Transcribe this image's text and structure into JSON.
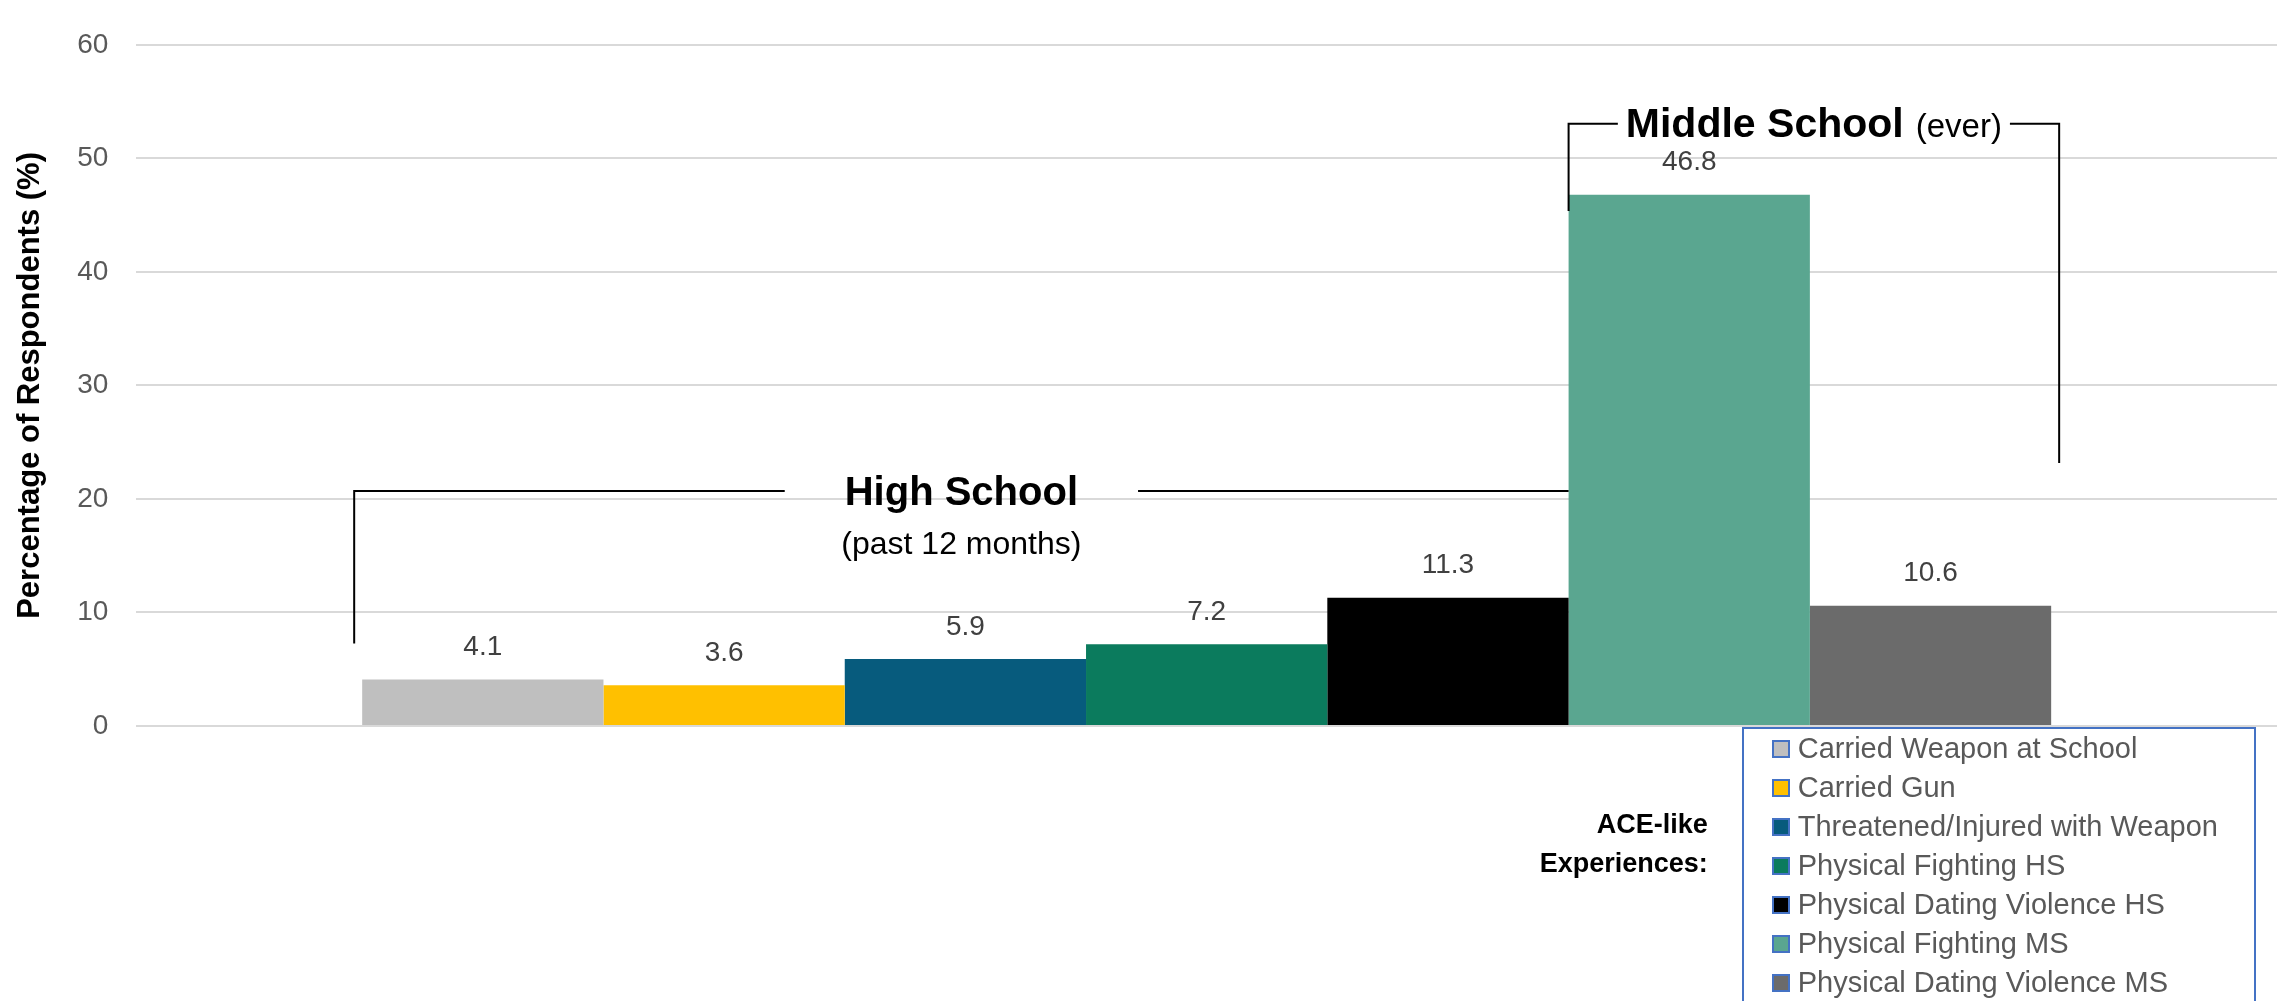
{
  "chart_data": {
    "type": "bar",
    "ylabel": "Percentage of Respondents (%)",
    "categories": [
      null
    ],
    "series": [
      {
        "name": "Carried Weapon at School",
        "color": "#bfbfbf",
        "values": [
          4.1
        ]
      },
      {
        "name": "Carried Gun",
        "color": "#ffc000",
        "values": [
          3.6
        ]
      },
      {
        "name": "Threatened/Injured with Weapon",
        "color": "#075b7d",
        "values": [
          5.9
        ]
      },
      {
        "name": "Physical Fighting HS",
        "color": "#0b7b5d",
        "values": [
          7.2
        ]
      },
      {
        "name": "Physical Dating Violence HS",
        "color": "#000000",
        "values": [
          11.3
        ]
      },
      {
        "name": "Physical Fighting MS",
        "color": "#5aa690",
        "values": [
          46.8
        ]
      },
      {
        "name": "Physical Dating Violence MS",
        "color": "#6b6b6b",
        "values": [
          10.6
        ]
      }
    ],
    "ylim": [
      0,
      60
    ],
    "yticks": [
      0,
      10,
      20,
      30,
      40,
      50,
      60
    ],
    "grid": "y",
    "data_labels": true,
    "legend": "bottom right",
    "legend_title": "ACE-like Experiences:",
    "annotations": [
      "High School",
      "(past 12 months)",
      "Middle School",
      "(ever)"
    ]
  }
}
